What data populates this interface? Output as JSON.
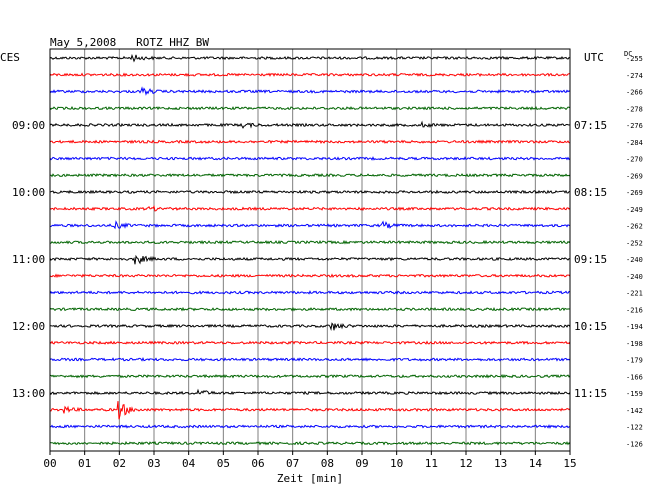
{
  "chart_data": {
    "type": "line",
    "title": "May 5,2008   ROTZ HHZ BW",
    "left_axis_label": "CES",
    "right_axis_label": "UTC",
    "dc_label": "DC",
    "xlabel": "Zeit [min]",
    "x_ticks": [
      "00",
      "01",
      "02",
      "03",
      "04",
      "05",
      "06",
      "07",
      "08",
      "09",
      "10",
      "11",
      "12",
      "13",
      "14",
      "15"
    ],
    "xlim": [
      0,
      15
    ],
    "grid": true,
    "trace_colors": [
      "#000000",
      "#ff0000",
      "#0000ff",
      "#006400"
    ],
    "local_hour_labels": [
      "09:00",
      "10:00",
      "11:00",
      "12:00",
      "13:00"
    ],
    "utc_hour_labels": [
      "07:15",
      "08:15",
      "09:15",
      "10:15",
      "11:15"
    ],
    "dc_offsets": [
      -255,
      -274,
      -266,
      -278,
      -276,
      -284,
      -270,
      -269,
      -269,
      -249,
      -262,
      -252,
      -240,
      -240,
      -221,
      -216,
      -194,
      -198,
      -179,
      -166,
      -159,
      -142,
      -122,
      -126
    ],
    "events": [
      {
        "trace": 0,
        "minute": 2.4,
        "amplitude": 3
      },
      {
        "trace": 2,
        "minute": 2.7,
        "amplitude": 3
      },
      {
        "trace": 4,
        "minute": 5.6,
        "amplitude": 2
      },
      {
        "trace": 4,
        "minute": 10.7,
        "amplitude": 2
      },
      {
        "trace": 9,
        "minute": 2.9,
        "amplitude": 2
      },
      {
        "trace": 10,
        "minute": 1.9,
        "amplitude": 3
      },
      {
        "trace": 10,
        "minute": 9.6,
        "amplitude": 3
      },
      {
        "trace": 12,
        "minute": 2.5,
        "amplitude": 5
      },
      {
        "trace": 16,
        "minute": 8.1,
        "amplitude": 5
      },
      {
        "trace": 20,
        "minute": 4.3,
        "amplitude": 3
      },
      {
        "trace": 21,
        "minute": 0.4,
        "amplitude": 3
      },
      {
        "trace": 21,
        "minute": 2.0,
        "amplitude": 9
      }
    ]
  }
}
